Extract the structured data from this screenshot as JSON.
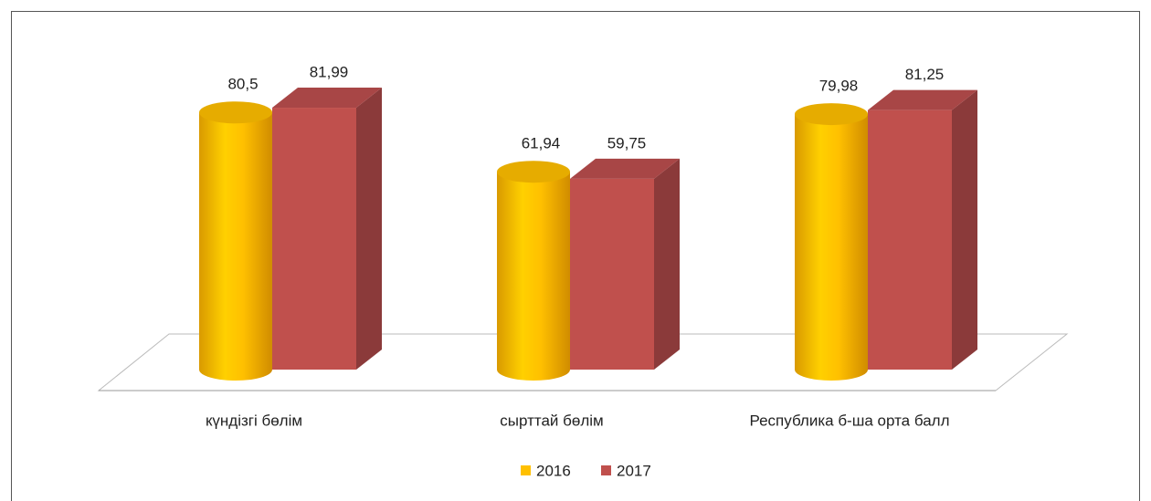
{
  "chart_data": {
    "type": "bar3d",
    "categories": [
      "күндізгі бөлім",
      "сырттай бөлім",
      "Республика б-ша орта балл"
    ],
    "series": [
      {
        "name": "2016",
        "color": "#ffc000",
        "values": [
          80.5,
          61.94,
          79.98
        ],
        "value_labels": [
          "80,5",
          "61,94",
          "79,98"
        ]
      },
      {
        "name": "2017",
        "color": "#c0504d",
        "values": [
          81.99,
          59.75,
          81.25
        ],
        "value_labels": [
          "81,99",
          "59,75",
          "81,25"
        ]
      }
    ],
    "legend": "bottom"
  }
}
